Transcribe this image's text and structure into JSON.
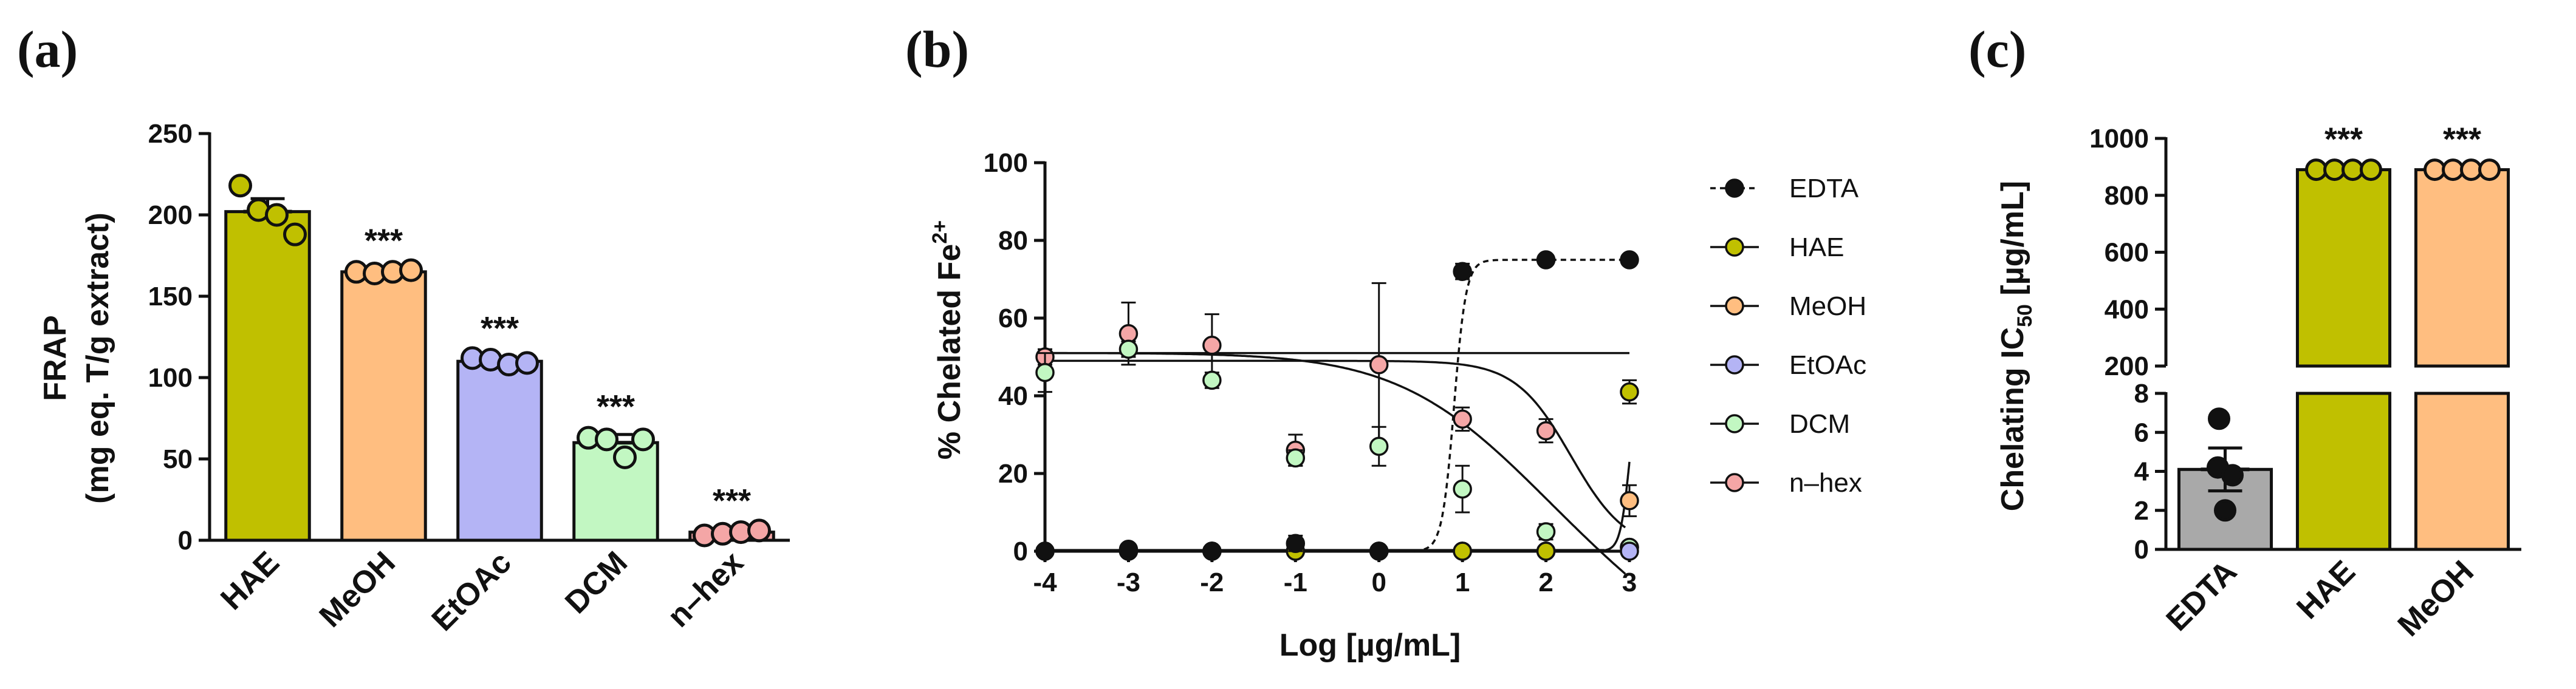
{
  "colors": {
    "HAE": "#c0c000",
    "MeOH": "#ffbe80",
    "EtOAc": "#b4b4f5",
    "DCM": "#c2f7c2",
    "n-hex": "#f4a6a6",
    "EDTA": "#a9a9a9",
    "ink": "#111111"
  },
  "panel_labels": {
    "a": "(a)",
    "b": "(b)",
    "c": "(c)"
  },
  "chart_data": [
    {
      "id": "a",
      "type": "bar",
      "title": "",
      "ylabel_line1": "FRAP",
      "ylabel_line2": "(mg eq. T/g extract)",
      "xlabel": "",
      "categories": [
        "HAE",
        "MeOH",
        "EtOAc",
        "DCM",
        "n–hex"
      ],
      "values": [
        202,
        165,
        110,
        60,
        5
      ],
      "errors": [
        8,
        2,
        3,
        5,
        2
      ],
      "points": [
        [
          218,
          203,
          200,
          188
        ],
        [
          165,
          164,
          165,
          166
        ],
        [
          112,
          111,
          108,
          109
        ],
        [
          63,
          62,
          51,
          62
        ],
        [
          3,
          4,
          5,
          6
        ]
      ],
      "significance": [
        "",
        "***",
        "***",
        "***",
        "***"
      ],
      "ylim": [
        0,
        250
      ],
      "yticks": [
        "0",
        "50",
        "100",
        "150",
        "200",
        "250"
      ]
    },
    {
      "id": "b",
      "type": "scatter",
      "title": "",
      "ylabel": "% Chelated Fe",
      "ylabel_sup": "2+",
      "xlabel": "Log [µg/mL]",
      "xlim": [
        -4,
        3
      ],
      "ylim": [
        0,
        100
      ],
      "xticks": [
        "-4",
        "-3",
        "-2",
        "-1",
        "0",
        "1",
        "2",
        "3"
      ],
      "yticks": [
        "0",
        "20",
        "40",
        "60",
        "80",
        "100"
      ],
      "x": [
        -4,
        -3,
        -2,
        -1,
        0,
        1,
        2,
        3
      ],
      "series": [
        {
          "name": "EDTA",
          "values": [
            0,
            0.5,
            0,
            2,
            0,
            72,
            75,
            75
          ],
          "errors": [
            0,
            0,
            0,
            2,
            0,
            2,
            0,
            0
          ],
          "fit": "dashed-sigmoid"
        },
        {
          "name": "HAE",
          "values": [
            0,
            0,
            0,
            0,
            0,
            0,
            0,
            41
          ],
          "errors": [
            0,
            0,
            0,
            0,
            0,
            0,
            0,
            3
          ],
          "fit": "solid-steep"
        },
        {
          "name": "MeOH",
          "values": [
            0,
            0,
            0,
            0,
            0,
            0,
            0,
            13
          ],
          "errors": [
            0,
            0,
            0,
            0,
            0,
            0,
            0,
            4
          ],
          "fit": "none"
        },
        {
          "name": "EtOAc",
          "values": [
            0,
            0,
            0,
            0,
            0,
            0,
            0,
            0
          ],
          "errors": [
            0,
            0,
            0,
            0,
            0,
            0,
            0,
            0
          ],
          "fit": "none"
        },
        {
          "name": "DCM",
          "values": [
            46,
            52,
            44,
            24,
            27,
            16,
            5,
            1
          ],
          "errors": [
            5,
            2,
            2,
            2,
            5,
            6,
            2,
            1
          ],
          "fit": "solid-decay"
        },
        {
          "name": "n–hex",
          "values": [
            50,
            56,
            53,
            26,
            48,
            34,
            31,
            1
          ],
          "errors": [
            2,
            8,
            8,
            4,
            21,
            3,
            3,
            1
          ],
          "fit": "solid-flat"
        }
      ],
      "legend": [
        "EDTA",
        "HAE",
        "MeOH",
        "EtOAc",
        "DCM",
        "n–hex"
      ],
      "legend_position": "right"
    },
    {
      "id": "c",
      "type": "bar",
      "title": "",
      "ylabel": "Chelating IC",
      "ylabel_sub": "50",
      "ylabel_unit": " [µg/mL]",
      "xlabel": "",
      "categories": [
        "EDTA",
        "HAE",
        "MeOH"
      ],
      "values": [
        4.1,
        890,
        890
      ],
      "errors": [
        1.1,
        0,
        0
      ],
      "points": [
        [
          6.7,
          4.2,
          3.8,
          2.0
        ],
        [
          890,
          890,
          890,
          890
        ],
        [
          890,
          890,
          890,
          890
        ]
      ],
      "significance": [
        "",
        "***",
        "***"
      ],
      "broken_axis": {
        "lower": [
          0,
          8
        ],
        "upper": [
          200,
          1000
        ]
      },
      "yticks_lower": [
        "0",
        "2",
        "4",
        "6",
        "8"
      ],
      "yticks_upper": [
        "200",
        "400",
        "600",
        "800",
        "1000"
      ]
    }
  ]
}
